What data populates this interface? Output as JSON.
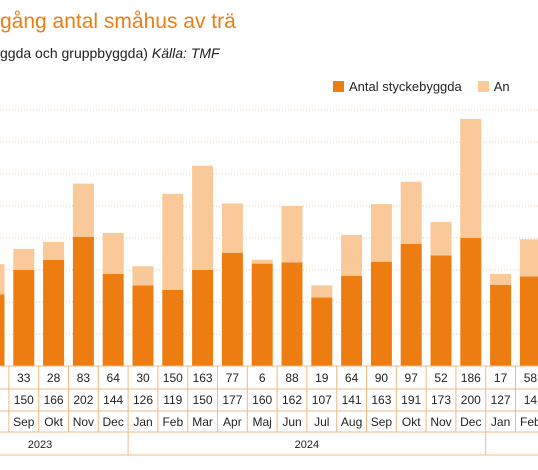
{
  "header": {
    "title": "gång antal småhus av trä",
    "subtitle": "ggda och gruppbyggda)",
    "source": "Källa: TMF"
  },
  "legend": {
    "items": [
      {
        "label": "Antal styckebyggda",
        "color": "#ee7d11"
      },
      {
        "label": "An",
        "color": "#f9c99a"
      }
    ]
  },
  "colors": {
    "primary": "#ee7d11",
    "secondary": "#f9c99a",
    "title": "#ee7d11",
    "grid": "#f0c7a6",
    "table_border": "#f3b886"
  },
  "chart_data": {
    "type": "bar",
    "stacked": true,
    "ylim": [
      0,
      400
    ],
    "categories": [
      "g",
      "Sep",
      "Okt",
      "Nov",
      "Dec",
      "Jan",
      "Feb",
      "Mar",
      "Apr",
      "Maj",
      "Jun",
      "Jul",
      "Aug",
      "Sep",
      "Okt",
      "Nov",
      "Dec",
      "Jan",
      "Feb"
    ],
    "series": [
      {
        "name": "Antal styckebyggda",
        "values": [
          112,
          150,
          166,
          202,
          144,
          126,
          119,
          150,
          177,
          160,
          162,
          107,
          141,
          163,
          191,
          173,
          200,
          127,
          140
        ]
      },
      {
        "name": "An",
        "values": [
          47,
          33,
          28,
          83,
          64,
          30,
          150,
          163,
          77,
          6,
          88,
          19,
          64,
          90,
          97,
          52,
          186,
          17,
          58
        ]
      }
    ],
    "row_top_labels": [
      "7",
      "33",
      "28",
      "83",
      "64",
      "30",
      "150",
      "163",
      "77",
      "6",
      "88",
      "19",
      "64",
      "90",
      "97",
      "52",
      "186",
      "17",
      "58"
    ],
    "row_bottom_labels": [
      "2",
      "150",
      "166",
      "202",
      "144",
      "126",
      "119",
      "150",
      "177",
      "160",
      "162",
      "107",
      "141",
      "163",
      "191",
      "173",
      "200",
      "127",
      "14"
    ],
    "year_groups": [
      {
        "label": "2023",
        "count": 5
      },
      {
        "label": "2024",
        "count": 12
      },
      {
        "label": "",
        "count": 2
      }
    ],
    "grid": true
  }
}
